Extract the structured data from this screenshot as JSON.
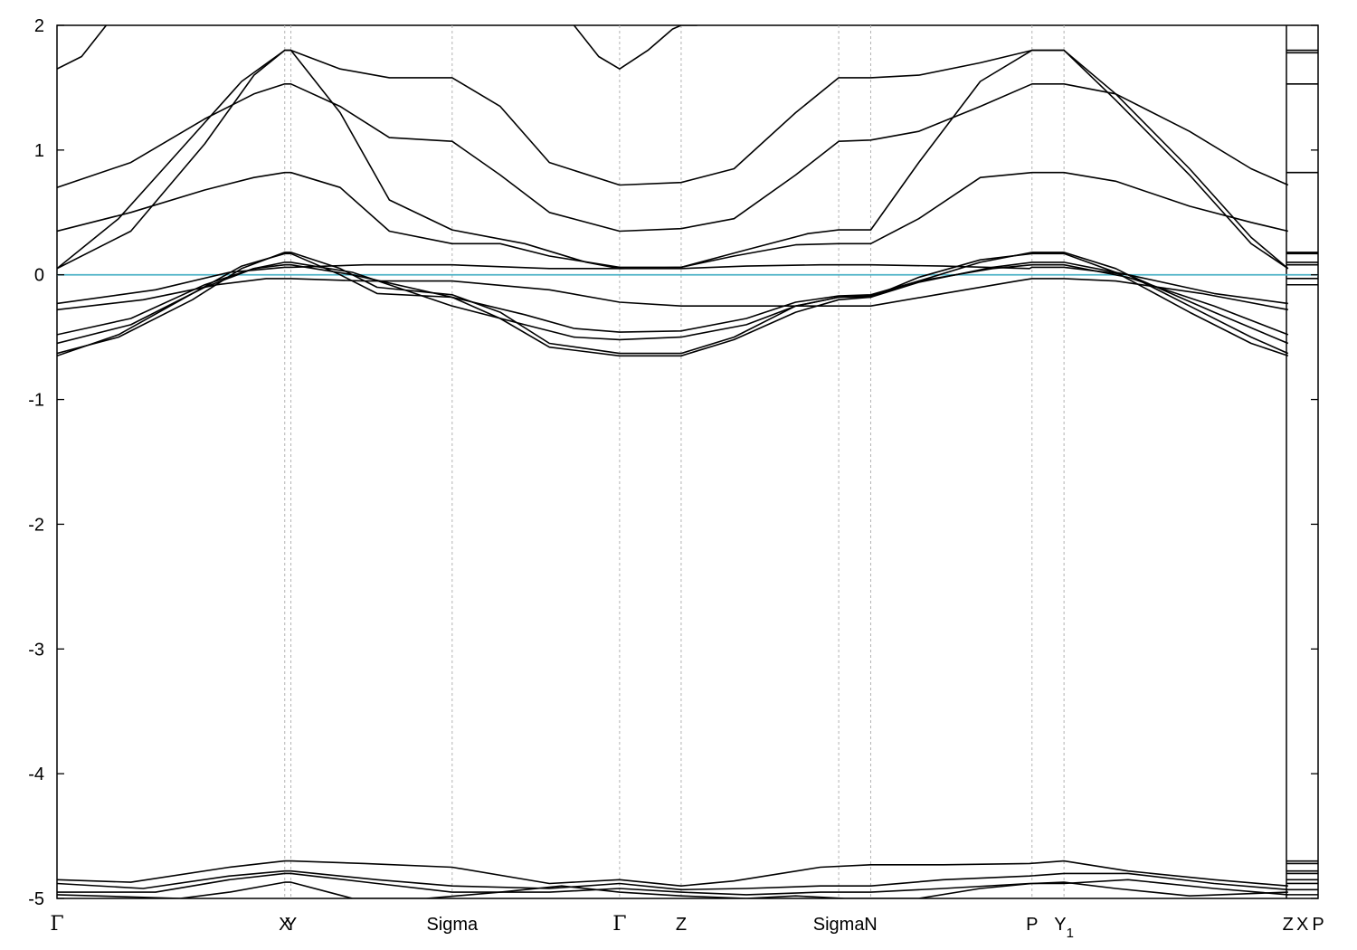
{
  "chart_data": {
    "type": "line",
    "ylim": [
      -5,
      2
    ],
    "y_ticks": [
      "2",
      "1",
      "0",
      "-1",
      "-2",
      "-3",
      "-4",
      "-5"
    ],
    "grid": "vertical dashed lines at high-symmetry points",
    "fermi_level": 0,
    "fermi_color": "#4fb3c8",
    "band_color": "#000000",
    "high_symmetry_points": [
      {
        "label": "Γ",
        "x": 0
      },
      {
        "label": "X",
        "x": 0.185
      },
      {
        "label": "Y",
        "x": 0.19
      },
      {
        "label": "Sigma",
        "x": 0.321
      },
      {
        "label": "Γ",
        "x": 0.457
      },
      {
        "label": "Z",
        "x": 0.507
      },
      {
        "label": "Sigma",
        "x": 0.635
      },
      {
        "label": "N",
        "x": 0.661
      },
      {
        "label": "P",
        "x": 0.792
      },
      {
        "label": "Y",
        "sub": "1",
        "x": 0.818
      },
      {
        "label": "Z",
        "x": 1.0
      },
      {
        "label": "X",
        "x": 1.0117
      },
      {
        "label": "P",
        "x": 1.0244
      }
    ],
    "xlim": [
      0,
      1.0244
    ],
    "series": [
      {
        "segments": [
          {
            "x": [
              0,
              0.05,
              0.11,
              0.15,
              0.185,
              0.19,
              0.23,
              0.26,
              0.321,
              0.36,
              0.4,
              0.457,
              0.507,
              0.55,
              0.6,
              0.635,
              0.661,
              0.7,
              0.75,
              0.792,
              0.818,
              0.86,
              0.92,
              0.97,
              1.0
            ],
            "y": [
              -0.63,
              -0.5,
              -0.2,
              0.05,
              0.18,
              0.18,
              0.05,
              -0.1,
              -0.16,
              -0.3,
              -0.55,
              -0.63,
              -0.63,
              -0.5,
              -0.25,
              -0.18,
              -0.17,
              -0.05,
              0.1,
              0.18,
              0.18,
              0.05,
              -0.25,
              -0.5,
              -0.63
            ]
          }
        ]
      },
      {
        "segments": [
          {
            "x": [
              0,
              0.05,
              0.11,
              0.15,
              0.185,
              0.19,
              0.23,
              0.26,
              0.321,
              0.36,
              0.4,
              0.457,
              0.507,
              0.55,
              0.6,
              0.635,
              0.661,
              0.7,
              0.75,
              0.792,
              0.818,
              0.86,
              0.92,
              0.97,
              1.0
            ],
            "y": [
              -0.65,
              -0.48,
              -0.15,
              0.07,
              0.17,
              0.17,
              0.0,
              -0.15,
              -0.18,
              -0.35,
              -0.58,
              -0.65,
              -0.65,
              -0.52,
              -0.3,
              -0.2,
              -0.18,
              -0.02,
              0.12,
              0.17,
              0.17,
              0.02,
              -0.3,
              -0.55,
              -0.65
            ]
          }
        ]
      },
      {
        "segments": [
          {
            "x": [
              0,
              0.06,
              0.12,
              0.16,
              0.185,
              0.19,
              0.24,
              0.321,
              0.38,
              0.42,
              0.457,
              0.507,
              0.56,
              0.6,
              0.635,
              0.661,
              0.7,
              0.76,
              0.792,
              0.818,
              0.87,
              0.94,
              1.0
            ],
            "y": [
              -0.55,
              -0.4,
              -0.1,
              0.05,
              0.1,
              0.1,
              0.02,
              -0.25,
              -0.4,
              -0.5,
              -0.52,
              -0.5,
              -0.4,
              -0.25,
              -0.18,
              -0.18,
              -0.06,
              0.06,
              0.1,
              0.1,
              0.0,
              -0.3,
              -0.55
            ]
          }
        ]
      },
      {
        "segments": [
          {
            "x": [
              0,
              0.06,
              0.12,
              0.16,
              0.185,
              0.19,
              0.24,
              0.321,
              0.38,
              0.42,
              0.457,
              0.507,
              0.56,
              0.6,
              0.635,
              0.661,
              0.7,
              0.76,
              0.792,
              0.818,
              0.87,
              0.94,
              1.0
            ],
            "y": [
              -0.48,
              -0.35,
              -0.08,
              0.05,
              0.08,
              0.08,
              0.0,
              -0.18,
              -0.32,
              -0.43,
              -0.46,
              -0.45,
              -0.35,
              -0.22,
              -0.17,
              -0.16,
              -0.05,
              0.05,
              0.08,
              0.08,
              -0.02,
              -0.25,
              -0.48
            ]
          }
        ]
      },
      {
        "segments": [
          {
            "x": [
              0,
              0.07,
              0.13,
              0.17,
              0.185,
              0.19,
              0.25,
              0.321,
              0.4,
              0.457,
              0.507,
              0.56,
              0.62,
              0.661,
              0.72,
              0.78,
              0.792,
              0.818,
              0.86,
              0.93,
              1.0
            ],
            "y": [
              -0.28,
              -0.2,
              -0.08,
              -0.03,
              -0.03,
              -0.03,
              -0.05,
              -0.05,
              -0.12,
              -0.22,
              -0.25,
              -0.25,
              -0.25,
              -0.25,
              -0.15,
              -0.05,
              -0.03,
              -0.03,
              -0.05,
              -0.15,
              -0.28
            ]
          }
        ]
      },
      {
        "segments": [
          {
            "x": [
              0,
              0.08,
              0.14,
              0.185,
              0.19,
              0.25,
              0.321,
              0.4,
              0.457,
              0.507,
              0.56,
              0.62,
              0.661,
              0.72,
              0.79,
              0.792,
              0.818,
              0.87,
              0.94,
              1.0
            ],
            "y": [
              -0.23,
              -0.12,
              0.02,
              0.06,
              0.06,
              0.08,
              0.08,
              0.05,
              0.05,
              0.05,
              0.07,
              0.08,
              0.08,
              0.07,
              0.05,
              0.06,
              0.06,
              0.0,
              -0.15,
              -0.23
            ]
          }
        ]
      },
      {
        "segments": [
          {
            "x": [
              0,
              0.06,
              0.12,
              0.16,
              0.185,
              0.19,
              0.23,
              0.27,
              0.321,
              0.36,
              0.4,
              0.457,
              0.507,
              0.55,
              0.6,
              0.635,
              0.661,
              0.7,
              0.75,
              0.792,
              0.818,
              0.86,
              0.92,
              0.97,
              1.0
            ],
            "y": [
              0.05,
              0.35,
              1.05,
              1.6,
              1.8,
              1.8,
              1.65,
              1.58,
              1.58,
              1.35,
              0.9,
              0.72,
              0.74,
              0.85,
              1.3,
              1.58,
              1.58,
              1.6,
              1.7,
              1.8,
              1.8,
              1.4,
              0.8,
              0.25,
              0.05
            ]
          }
        ]
      },
      {
        "segments": [
          {
            "x": [
              0,
              0.06,
              0.12,
              0.16,
              0.185,
              0.19,
              0.23,
              0.27,
              0.321,
              0.36,
              0.4,
              0.457,
              0.507,
              0.55,
              0.6,
              0.635,
              0.661,
              0.7,
              0.75,
              0.792,
              0.818,
              0.86,
              0.92,
              0.97,
              1.0
            ],
            "y": [
              0.7,
              0.9,
              1.25,
              1.45,
              1.53,
              1.53,
              1.35,
              1.1,
              1.07,
              0.8,
              0.5,
              0.35,
              0.37,
              0.45,
              0.8,
              1.07,
              1.08,
              1.15,
              1.35,
              1.53,
              1.53,
              1.45,
              1.15,
              0.85,
              0.72
            ]
          }
        ]
      },
      {
        "segments": [
          {
            "x": [
              0,
              0.06,
              0.12,
              0.16,
              0.185,
              0.19,
              0.23,
              0.27,
              0.321,
              0.36,
              0.4,
              0.457,
              0.507,
              0.55,
              0.6,
              0.635,
              0.661,
              0.7,
              0.75,
              0.792,
              0.818,
              0.86,
              0.92,
              0.97,
              1.0
            ],
            "y": [
              0.35,
              0.5,
              0.68,
              0.78,
              0.82,
              0.82,
              0.7,
              0.35,
              0.25,
              0.25,
              0.15,
              0.06,
              0.06,
              0.15,
              0.24,
              0.25,
              0.25,
              0.45,
              0.78,
              0.82,
              0.82,
              0.75,
              0.55,
              0.42,
              0.35
            ]
          }
        ]
      },
      {
        "segments": [
          {
            "x": [
              0,
              0.05,
              0.1,
              0.15,
              0.185,
              0.19,
              0.23,
              0.27,
              0.321,
              0.38,
              0.43,
              0.457,
              0.507,
              0.56,
              0.61,
              0.635,
              0.661,
              0.7,
              0.75,
              0.792,
              0.818,
              0.86,
              0.92,
              0.97,
              1.0
            ],
            "y": [
              0.05,
              0.45,
              1.0,
              1.55,
              1.8,
              1.8,
              1.3,
              0.6,
              0.36,
              0.25,
              0.1,
              0.05,
              0.06,
              0.2,
              0.33,
              0.36,
              0.36,
              0.9,
              1.55,
              1.8,
              1.8,
              1.45,
              0.85,
              0.3,
              0.05
            ]
          }
        ]
      },
      {
        "segments": [
          {
            "x": [
              0,
              0.02,
              0.04
            ],
            "y": [
              1.65,
              1.75,
              2.0
            ]
          },
          {
            "x": [
              0.42,
              0.44,
              0.457,
              0.48,
              0.5,
              0.507,
              0.52
            ],
            "y": [
              2.0,
              1.75,
              1.65,
              1.8,
              1.97,
              2.0,
              2.0
            ]
          }
        ]
      },
      {
        "segments": [
          {
            "x": [
              0,
              0.06,
              0.14,
              0.185,
              0.19,
              0.25,
              0.321,
              0.4,
              0.457,
              0.507,
              0.55,
              0.62,
              0.661,
              0.72,
              0.79,
              0.818,
              0.87,
              0.94,
              1.0
            ],
            "y": [
              -4.85,
              -4.87,
              -4.75,
              -4.7,
              -4.7,
              -4.72,
              -4.75,
              -4.88,
              -4.85,
              -4.9,
              -4.86,
              -4.75,
              -4.73,
              -4.73,
              -4.72,
              -4.7,
              -4.78,
              -4.85,
              -4.9
            ]
          }
        ]
      },
      {
        "segments": [
          {
            "x": [
              0,
              0.07,
              0.14,
              0.185,
              0.19,
              0.26,
              0.321,
              0.4,
              0.457,
              0.507,
              0.56,
              0.62,
              0.661,
              0.72,
              0.79,
              0.818,
              0.87,
              0.94,
              1.0
            ],
            "y": [
              -4.88,
              -4.92,
              -4.82,
              -4.78,
              -4.78,
              -4.85,
              -4.9,
              -4.92,
              -4.88,
              -4.93,
              -4.92,
              -4.9,
              -4.9,
              -4.85,
              -4.82,
              -4.8,
              -4.8,
              -4.88,
              -4.93
            ]
          }
        ]
      },
      {
        "segments": [
          {
            "x": [
              0,
              0.08,
              0.14,
              0.185,
              0.19,
              0.26,
              0.321,
              0.4,
              0.457,
              0.507,
              0.56,
              0.62,
              0.661,
              0.72,
              0.79,
              0.818,
              0.87,
              0.94,
              1.0
            ],
            "y": [
              -4.95,
              -4.95,
              -4.85,
              -4.8,
              -4.8,
              -4.88,
              -4.95,
              -4.95,
              -4.92,
              -4.95,
              -4.97,
              -4.95,
              -4.95,
              -4.92,
              -4.88,
              -4.88,
              -4.85,
              -4.92,
              -4.97
            ]
          }
        ]
      },
      {
        "segments": [
          {
            "x": [
              0,
              0.1,
              0.14,
              0.185,
              0.19,
              0.24,
              0.3,
              0.36,
              0.41,
              0.457,
              0.507,
              0.56,
              0.6,
              0.64,
              0.7,
              0.75,
              0.792,
              0.818,
              0.86,
              0.92,
              1.0
            ],
            "y": [
              -4.97,
              -5.0,
              -4.95,
              -4.87,
              -4.87,
              -5.0,
              -5.0,
              -4.95,
              -4.9,
              -4.95,
              -4.98,
              -5.0,
              -4.98,
              -5.0,
              -5.0,
              -4.92,
              -4.88,
              -4.87,
              -4.92,
              -4.98,
              -4.95
            ]
          }
        ]
      }
    ],
    "side_panel_lines": [
      1.8,
      1.78,
      1.53,
      0.82,
      0.18,
      0.17,
      0.1,
      0.08,
      -0.03,
      -0.08,
      -4.7,
      -4.72,
      -4.78,
      -4.8,
      -4.85,
      -4.88,
      -4.93,
      -4.97
    ]
  }
}
